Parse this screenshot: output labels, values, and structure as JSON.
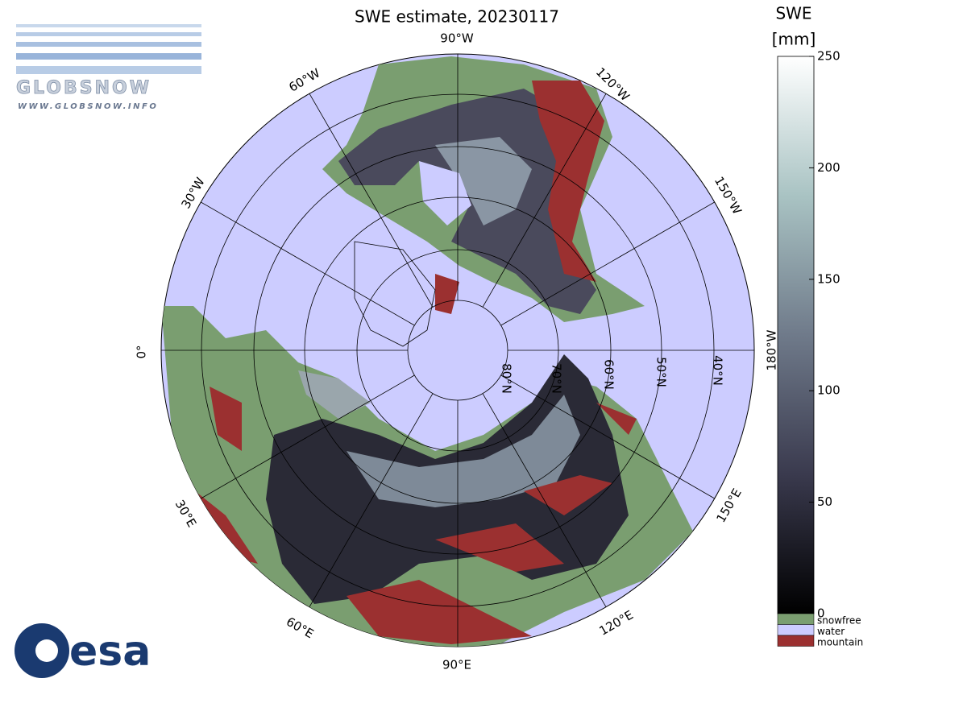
{
  "title": "SWE estimate, 20230117",
  "logo": {
    "name": "GLOBSNOW",
    "url": "WWW.GLOBSNOW.INFO",
    "agency": "esa"
  },
  "longitude_labels": [
    "90°W",
    "120°W",
    "150°W",
    "180°W",
    "0°",
    "30°W",
    "60°W",
    "30°E",
    "60°E",
    "90°E",
    "120°E",
    "150°E"
  ],
  "latitude_labels": [
    "80°N",
    "70°N",
    "60°N",
    "50°N",
    "40°N"
  ],
  "colorbar": {
    "title": "SWE",
    "unit": "[mm]",
    "lim": [
      0,
      250
    ],
    "ticks": [
      0,
      50,
      100,
      150,
      200,
      250
    ],
    "categories": [
      {
        "name": "snowfree",
        "color": "#7a9e70"
      },
      {
        "name": "water",
        "color": "#ccccff"
      },
      {
        "name": "mountain",
        "color": "#9b3030"
      }
    ]
  }
}
